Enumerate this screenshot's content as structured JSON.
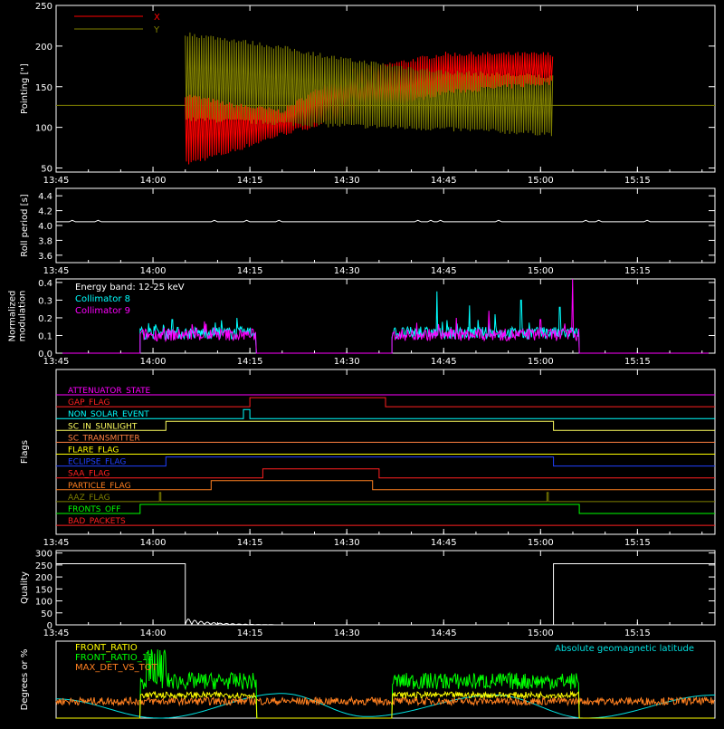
{
  "chart_data": [
    {
      "id": "pointing",
      "type": "line",
      "ylabel": "Pointing [\"]",
      "xlim": [
        "13:45",
        "15:27"
      ],
      "ylim": [
        45,
        250
      ],
      "yticks": [
        50,
        100,
        150,
        200,
        250
      ],
      "xticks": [
        "13:45",
        "14:00",
        "14:15",
        "14:30",
        "14:45",
        "15:00",
        "15:15"
      ],
      "legend_position": "top-left",
      "series": [
        {
          "name": "X",
          "color": "#ff0000",
          "baseline": 127,
          "start": "14:05",
          "end": "15:02",
          "envelope_time": [
            "14:05",
            "14:12",
            "14:20",
            "14:30",
            "14:45",
            "15:02"
          ],
          "envelope_low": [
            55,
            70,
            92,
            112,
            143,
            155
          ],
          "envelope_high": [
            140,
            128,
            120,
            168,
            190,
            190
          ]
        },
        {
          "name": "Y",
          "color": "#808000",
          "baseline": 127,
          "start": "14:05",
          "end": "15:02",
          "envelope_time": [
            "14:05",
            "14:12",
            "14:20",
            "14:30",
            "14:45",
            "15:02"
          ],
          "envelope_low": [
            110,
            108,
            105,
            102,
            98,
            92
          ],
          "envelope_high": [
            215,
            208,
            198,
            183,
            168,
            162
          ]
        }
      ]
    },
    {
      "id": "roll",
      "type": "line",
      "ylabel": "Roll period [s]",
      "ylim": [
        3.5,
        4.5
      ],
      "yticks": [
        3.6,
        3.8,
        4.0,
        4.2,
        4.4
      ],
      "yticklabels": [
        "3.6",
        "3.8",
        "4.0",
        "4.2",
        "4.4"
      ],
      "xticks": [
        "13:45",
        "14:00",
        "14:15",
        "14:30",
        "14:45",
        "15:00",
        "15:15"
      ],
      "series": [
        {
          "name": "",
          "color": "#ffffff",
          "value": 4.05
        }
      ]
    },
    {
      "id": "modulation",
      "type": "line",
      "ylabel": "Normalized modulation",
      "ylabel_lines": [
        "Normalized",
        "modulation"
      ],
      "ylim": [
        0,
        0.42
      ],
      "yticks": [
        0,
        0.1,
        0.2,
        0.3,
        0.4
      ],
      "yticklabels": [
        "0.0",
        "0.1",
        "0.2",
        "0.3",
        "0.4"
      ],
      "xticks": [
        "13:45",
        "14:00",
        "14:15",
        "14:30",
        "14:45",
        "15:00",
        "15:15"
      ],
      "annotation": "Energy band: 12-25 keV",
      "series": [
        {
          "name": "Collimator 8",
          "color": "#00ffff",
          "segments": [
            [
              "13:58",
              "14:16"
            ],
            [
              "14:37",
              "15:06"
            ]
          ],
          "level": 0.1,
          "spikes": [
            [
              "14:44",
              0.35
            ],
            [
              "14:49",
              0.27
            ],
            [
              "14:53",
              0.22
            ],
            [
              "14:57",
              0.3
            ],
            [
              "15:03",
              0.26
            ],
            [
              "14:13",
              0.2
            ],
            [
              "14:03",
              0.19
            ]
          ]
        },
        {
          "name": "Collimator 9",
          "color": "#ff00ff",
          "segments": [
            [
              "13:58",
              "14:16"
            ],
            [
              "14:37",
              "15:06"
            ]
          ],
          "level": 0.09,
          "spikes": [
            [
              "15:05",
              0.42
            ],
            [
              "14:52",
              0.24
            ],
            [
              "14:08",
              0.18
            ],
            [
              "14:47",
              0.2
            ],
            [
              "15:00",
              0.19
            ]
          ]
        }
      ]
    },
    {
      "id": "flags",
      "type": "line",
      "ylabel": "Flags",
      "xticks": [
        "13:45",
        "14:00",
        "14:15",
        "14:30",
        "14:45",
        "15:00",
        "15:15"
      ],
      "series": [
        {
          "name": "ATTENUATOR_STATE",
          "color": "#ff00ff",
          "steps": []
        },
        {
          "name": "GAP_FLAG",
          "color": "#ff2020",
          "steps": [
            [
              "14:15",
              "14:36"
            ]
          ]
        },
        {
          "name": "NON_SOLAR_EVENT",
          "color": "#00ffff",
          "steps": [
            [
              "14:14",
              "14:15"
            ]
          ]
        },
        {
          "name": "SC_IN_SUNLIGHT",
          "color": "#ffff60",
          "steps": [
            [
              "14:02",
              "15:02"
            ]
          ]
        },
        {
          "name": "SC_TRANSMITTER",
          "color": "#ff8040",
          "steps": []
        },
        {
          "name": "FLARE_FLAG",
          "color": "#ffff00",
          "steps": []
        },
        {
          "name": "ECLIPSE_FLAG",
          "color": "#2040ff",
          "steps": [
            [
              "14:02",
              "15:02"
            ]
          ]
        },
        {
          "name": "SAA_FLAG",
          "color": "#ff2020",
          "steps": [
            [
              "14:17",
              "14:35"
            ]
          ]
        },
        {
          "name": "PARTICLE_FLAG",
          "color": "#ff8020",
          "steps": [
            [
              "14:09",
              "14:34"
            ]
          ]
        },
        {
          "name": "AAZ_FLAG",
          "color": "#808000",
          "steps": [
            [
              "14:01",
              "14:01"
            ],
            [
              "15:01",
              "15:01"
            ]
          ]
        },
        {
          "name": "FRONTS_OFF",
          "color": "#00ff00",
          "steps": [
            [
              "13:58",
              "15:06"
            ]
          ]
        },
        {
          "name": "BAD_PACKETS",
          "color": "#ff2020",
          "steps": []
        }
      ]
    },
    {
      "id": "quality",
      "type": "line",
      "ylabel": "Quality",
      "ylim": [
        0,
        310
      ],
      "yticks": [
        0,
        50,
        100,
        150,
        200,
        250,
        300
      ],
      "xticks": [
        "13:45",
        "14:00",
        "14:15",
        "14:30",
        "14:45",
        "15:00",
        "15:15"
      ],
      "series": [
        {
          "name": "",
          "color": "#ffffff",
          "high": 255,
          "high_until": "14:05",
          "high_from": "15:02"
        }
      ]
    },
    {
      "id": "ratios",
      "type": "line",
      "ylabel": "Degrees or %",
      "ylim": [
        0,
        100
      ],
      "annotation": "Absolute geomagnetic latitude",
      "series": [
        {
          "name": "FRONT_RATIO",
          "color": "#ffff00",
          "level": 30
        },
        {
          "name": "FRONT_RATIO_12",
          "color": "#00ff00",
          "level": 48
        },
        {
          "name": "MAX_DET_VS_TOT",
          "color": "#ff8020",
          "level": 22
        },
        {
          "name": "Absolute geomagnetic latitude",
          "color": "#00e0e0",
          "time": [
            "13:45",
            "14:01",
            "14:20",
            "14:33",
            "14:53",
            "15:07",
            "15:27"
          ],
          "value": [
            25,
            0,
            32,
            2,
            30,
            0,
            30
          ]
        }
      ]
    }
  ]
}
